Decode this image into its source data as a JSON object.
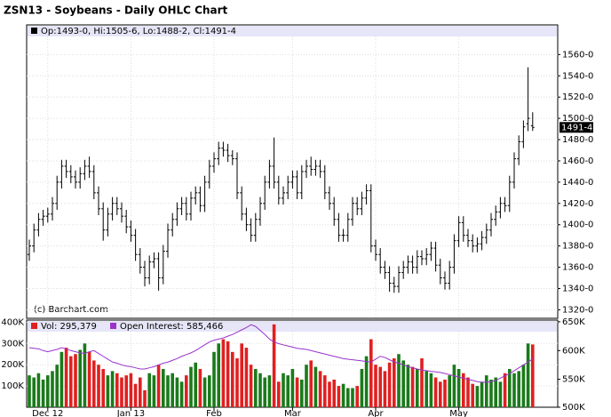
{
  "chart_data": [
    {
      "type": "ohlc",
      "title": "ZSN13 - Soybeans - Daily OHLC Chart",
      "legend_text": "Op:1493-0, Hi:1505-6, Lo:1488-2, Cl:1491-4",
      "watermark": "(c) Barchart.com",
      "last_label": "1491-4",
      "color": "#000000",
      "open": [
        1372,
        1380,
        1395,
        1405,
        1408,
        1410,
        1420,
        1440,
        1455,
        1450,
        1445,
        1440,
        1448,
        1455,
        1450,
        1430,
        1415,
        1395,
        1410,
        1420,
        1415,
        1408,
        1398,
        1390,
        1372,
        1360,
        1350,
        1365,
        1368,
        1350,
        1375,
        1395,
        1405,
        1415,
        1420,
        1410,
        1425,
        1430,
        1418,
        1440,
        1455,
        1462,
        1472,
        1470,
        1465,
        1462,
        1430,
        1410,
        1400,
        1390,
        1405,
        1420,
        1440,
        1455,
        1440,
        1425,
        1430,
        1440,
        1445,
        1430,
        1450,
        1455,
        1452,
        1455,
        1450,
        1430,
        1420,
        1405,
        1390,
        1390,
        1405,
        1420,
        1415,
        1425,
        1432,
        1380,
        1372,
        1360,
        1355,
        1345,
        1342,
        1355,
        1360,
        1365,
        1360,
        1370,
        1368,
        1372,
        1378,
        1362,
        1350,
        1345,
        1360,
        1385,
        1402,
        1390,
        1385,
        1380,
        1382,
        1388,
        1395,
        1405,
        1412,
        1420,
        1418,
        1440,
        1462,
        1478,
        1495,
        1493
      ],
      "high": [
        1386,
        1401,
        1411,
        1414,
        1416,
        1426,
        1446,
        1461,
        1461,
        1456,
        1451,
        1454,
        1461,
        1464,
        1456,
        1436,
        1421,
        1416,
        1426,
        1426,
        1421,
        1414,
        1404,
        1396,
        1378,
        1366,
        1371,
        1374,
        1374,
        1381,
        1401,
        1411,
        1421,
        1426,
        1426,
        1431,
        1436,
        1436,
        1446,
        1461,
        1468,
        1478,
        1478,
        1476,
        1470,
        1468,
        1436,
        1416,
        1406,
        1411,
        1426,
        1446,
        1461,
        1482,
        1446,
        1436,
        1446,
        1451,
        1451,
        1456,
        1461,
        1464,
        1461,
        1461,
        1456,
        1436,
        1426,
        1411,
        1396,
        1411,
        1426,
        1426,
        1431,
        1438,
        1438,
        1386,
        1378,
        1366,
        1361,
        1351,
        1361,
        1366,
        1371,
        1371,
        1376,
        1376,
        1378,
        1384,
        1384,
        1368,
        1356,
        1366,
        1391,
        1408,
        1408,
        1396,
        1391,
        1388,
        1394,
        1401,
        1411,
        1418,
        1426,
        1426,
        1446,
        1468,
        1484,
        1498,
        1548,
        1505.75
      ],
      "low": [
        1366,
        1374,
        1389,
        1399,
        1402,
        1404,
        1414,
        1434,
        1444,
        1439,
        1434,
        1434,
        1442,
        1444,
        1424,
        1409,
        1385,
        1389,
        1404,
        1409,
        1402,
        1392,
        1384,
        1366,
        1354,
        1342,
        1344,
        1359,
        1338,
        1344,
        1369,
        1389,
        1399,
        1409,
        1404,
        1404,
        1419,
        1412,
        1412,
        1434,
        1449,
        1456,
        1464,
        1459,
        1456,
        1424,
        1404,
        1394,
        1384,
        1384,
        1399,
        1414,
        1434,
        1434,
        1419,
        1419,
        1424,
        1434,
        1424,
        1424,
        1444,
        1446,
        1446,
        1444,
        1424,
        1414,
        1399,
        1384,
        1384,
        1384,
        1399,
        1409,
        1409,
        1419,
        1374,
        1366,
        1354,
        1349,
        1337,
        1336,
        1336,
        1349,
        1354,
        1354,
        1354,
        1362,
        1362,
        1366,
        1356,
        1344,
        1339,
        1339,
        1354,
        1379,
        1384,
        1379,
        1374,
        1374,
        1376,
        1382,
        1389,
        1399,
        1406,
        1412,
        1412,
        1434,
        1456,
        1472,
        1488,
        1488.25
      ],
      "close": [
        1380,
        1395,
        1405,
        1408,
        1410,
        1420,
        1440,
        1455,
        1450,
        1445,
        1440,
        1448,
        1455,
        1450,
        1430,
        1415,
        1395,
        1410,
        1420,
        1415,
        1408,
        1398,
        1390,
        1372,
        1360,
        1350,
        1365,
        1368,
        1350,
        1375,
        1395,
        1405,
        1415,
        1420,
        1410,
        1425,
        1430,
        1418,
        1440,
        1455,
        1462,
        1472,
        1470,
        1465,
        1462,
        1430,
        1410,
        1400,
        1390,
        1405,
        1420,
        1440,
        1455,
        1440,
        1425,
        1430,
        1440,
        1445,
        1430,
        1450,
        1455,
        1452,
        1455,
        1450,
        1430,
        1420,
        1405,
        1390,
        1390,
        1405,
        1420,
        1415,
        1425,
        1432,
        1380,
        1372,
        1360,
        1355,
        1345,
        1342,
        1355,
        1360,
        1365,
        1360,
        1370,
        1368,
        1372,
        1378,
        1362,
        1350,
        1345,
        1360,
        1385,
        1402,
        1390,
        1385,
        1380,
        1382,
        1388,
        1395,
        1405,
        1412,
        1420,
        1418,
        1440,
        1462,
        1478,
        1492,
        1500,
        1491.5
      ],
      "ylim": [
        1312,
        1577
      ],
      "yticks": [
        {
          "value": 1320,
          "label": "1320-0"
        },
        {
          "value": 1340,
          "label": "1340-0"
        },
        {
          "value": 1360,
          "label": "1360-0"
        },
        {
          "value": 1380,
          "label": "1380-0"
        },
        {
          "value": 1400,
          "label": "1400-0"
        },
        {
          "value": 1420,
          "label": "1420-0"
        },
        {
          "value": 1440,
          "label": "1440-0"
        },
        {
          "value": 1460,
          "label": "1460-0"
        },
        {
          "value": 1480,
          "label": "1480-0"
        },
        {
          "value": 1500,
          "label": "1500-0"
        },
        {
          "value": 1520,
          "label": "1520-0"
        },
        {
          "value": 1540,
          "label": "1540-0"
        },
        {
          "value": 1560,
          "label": "1560-0"
        }
      ],
      "grid": true
    },
    {
      "type": "bar",
      "categories": [
        null,
        null,
        null,
        null,
        "Dec 12",
        null,
        null,
        null,
        null,
        null,
        null,
        null,
        null,
        null,
        null,
        null,
        null,
        null,
        null,
        null,
        null,
        null,
        "Jan 13",
        null,
        null,
        null,
        null,
        null,
        null,
        null,
        null,
        null,
        null,
        null,
        null,
        null,
        null,
        null,
        null,
        null,
        "Feb",
        null,
        null,
        null,
        null,
        null,
        null,
        null,
        null,
        null,
        null,
        null,
        null,
        null,
        null,
        null,
        null,
        "Mar",
        null,
        null,
        null,
        null,
        null,
        null,
        null,
        null,
        null,
        null,
        null,
        null,
        null,
        null,
        null,
        null,
        null,
        "Apr",
        null,
        null,
        null,
        null,
        null,
        null,
        null,
        null,
        null,
        null,
        null,
        null,
        null,
        null,
        null,
        null,
        null,
        "May",
        null,
        null,
        null,
        null,
        null,
        null,
        null,
        null,
        null,
        null,
        null,
        null,
        null,
        null,
        null,
        null
      ],
      "series": [
        {
          "name": "Vol: 295,379",
          "up_color": "#1a7a1a",
          "down_color": "#e02020",
          "values": [
            150000,
            140000,
            160000,
            130000,
            150000,
            170000,
            200000,
            260000,
            280000,
            240000,
            250000,
            270000,
            300000,
            260000,
            220000,
            200000,
            180000,
            150000,
            170000,
            160000,
            140000,
            150000,
            160000,
            110000,
            140000,
            80000,
            160000,
            150000,
            200000,
            180000,
            150000,
            160000,
            140000,
            120000,
            150000,
            190000,
            210000,
            180000,
            140000,
            150000,
            260000,
            300000,
            320000,
            310000,
            260000,
            230000,
            300000,
            280000,
            200000,
            180000,
            160000,
            140000,
            150000,
            390000,
            120000,
            160000,
            150000,
            180000,
            140000,
            130000,
            200000,
            220000,
            190000,
            170000,
            150000,
            120000,
            130000,
            100000,
            110000,
            90000,
            90000,
            100000,
            180000,
            240000,
            320000,
            200000,
            190000,
            170000,
            210000,
            230000,
            250000,
            220000,
            200000,
            190000,
            180000,
            230000,
            170000,
            160000,
            140000,
            120000,
            130000,
            150000,
            200000,
            180000,
            160000,
            140000,
            110000,
            100000,
            120000,
            150000,
            130000,
            140000,
            120000,
            160000,
            180000,
            160000,
            170000,
            200000,
            300000,
            295379
          ]
        },
        {
          "name": "Open Interest: 585,466",
          "color": "#9933cc",
          "axis": "y2",
          "values": [
            605000,
            604000,
            603000,
            600000,
            598000,
            600000,
            602000,
            605000,
            603000,
            600000,
            598000,
            596000,
            595000,
            598000,
            600000,
            595000,
            590000,
            585000,
            580000,
            578000,
            575000,
            573000,
            572000,
            570000,
            568000,
            568000,
            570000,
            572000,
            575000,
            578000,
            580000,
            583000,
            586000,
            590000,
            593000,
            596000,
            600000,
            605000,
            610000,
            615000,
            618000,
            620000,
            622000,
            625000,
            628000,
            632000,
            636000,
            640000,
            645000,
            642000,
            635000,
            628000,
            620000,
            615000,
            612000,
            610000,
            608000,
            606000,
            604000,
            603000,
            602000,
            600000,
            598000,
            596000,
            594000,
            592000,
            590000,
            588000,
            586000,
            585000,
            584000,
            583000,
            582000,
            581000,
            580000,
            585000,
            590000,
            588000,
            584000,
            580000,
            578000,
            575000,
            572000,
            570000,
            568000,
            566000,
            565000,
            564000,
            563000,
            562000,
            560000,
            558000,
            556000,
            554000,
            552000,
            550000,
            548000,
            546000,
            545000,
            545000,
            546000,
            548000,
            552000,
            556000,
            560000,
            565000,
            570000,
            575000,
            580000,
            585466
          ]
        }
      ],
      "ylim": [
        0,
        410000
      ],
      "yticks": [
        {
          "value": 100000,
          "label": "100K"
        },
        {
          "value": 200000,
          "label": "200K"
        },
        {
          "value": 300000,
          "label": "300K"
        },
        {
          "value": 400000,
          "label": "400K"
        }
      ],
      "y2lim": [
        501500,
        653000
      ],
      "y2ticks": [
        {
          "value": 500000,
          "label": "500K"
        },
        {
          "value": 550000,
          "label": "550K"
        },
        {
          "value": 600000,
          "label": "600K"
        },
        {
          "value": 650000,
          "label": "650K"
        }
      ],
      "grid": true
    }
  ]
}
